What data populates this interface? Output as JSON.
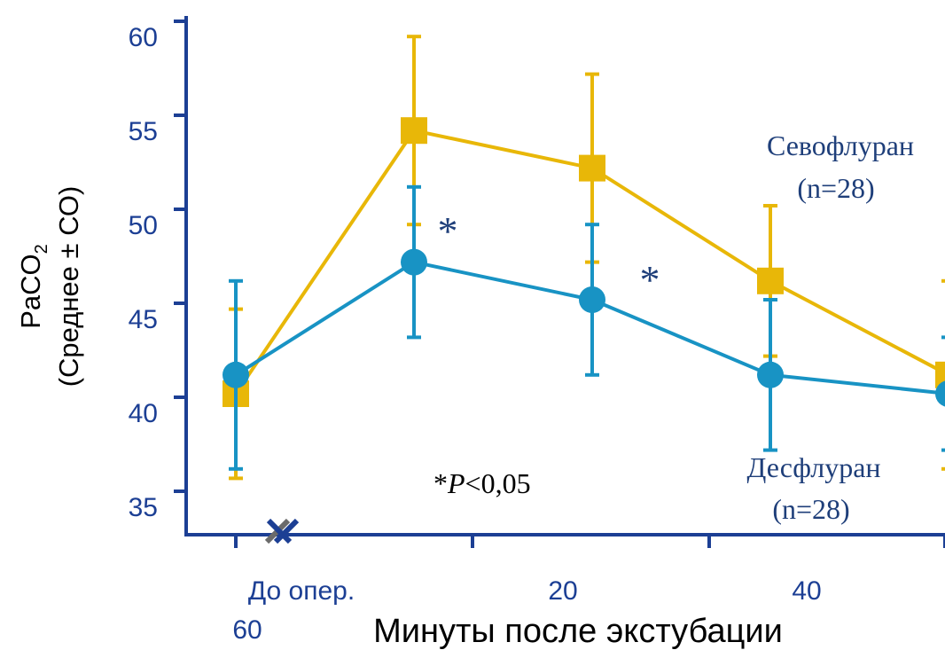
{
  "chart_data": {
    "type": "line",
    "ylabel_line1": "PaCO",
    "ylabel_sub": "2",
    "ylabel_line2": "(Среднее ± СО)",
    "xlabel": "Минуты после экстубации",
    "x_ticks": [
      "До опер.",
      "20",
      "40"
    ],
    "x_extra_label": "60",
    "y_ticks": [
      35,
      40,
      45,
      50,
      55,
      60
    ],
    "ylim": [
      32.5,
      60
    ],
    "x": [
      0,
      10,
      20,
      30,
      40
    ],
    "series": [
      {
        "name": "Севофлуран",
        "n_label": "(n=28)",
        "color": "#e8b708",
        "marker": "square",
        "values": [
          40,
          54,
          52,
          46,
          41
        ],
        "error": [
          4.5,
          5,
          5,
          4,
          5
        ]
      },
      {
        "name": "Десфлуран",
        "n_label": "(n=28)",
        "color": "#1893c4",
        "marker": "circle",
        "values": [
          41,
          47,
          45,
          41,
          40
        ],
        "error": [
          5,
          4,
          4,
          4,
          3
        ]
      }
    ],
    "significance_markers": [
      "*",
      "*"
    ],
    "note": "*P<0,05"
  }
}
